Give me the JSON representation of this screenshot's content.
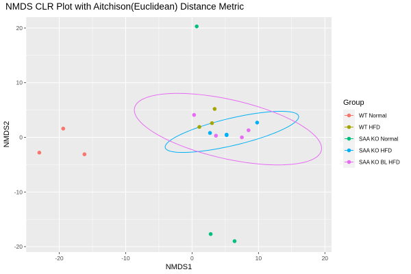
{
  "chart_data": {
    "type": "scatter",
    "title": "NMDS CLR Plot with Aitchison(Euclidean) Distance Metric",
    "xlabel": "NMDS1",
    "ylabel": "NMDS2",
    "xlim": [
      -25,
      21
    ],
    "ylim": [
      -21,
      22
    ],
    "x_ticks": [
      -20,
      -10,
      0,
      10,
      20
    ],
    "y_ticks": [
      -20,
      -10,
      0,
      10,
      20
    ],
    "grid": true,
    "legend": {
      "title": "Group",
      "position": "right"
    },
    "series": [
      {
        "name": "WT Normal",
        "color": "#F8766D",
        "points": [
          [
            -19.4,
            1.6
          ],
          [
            -23.0,
            -2.8
          ],
          [
            -16.2,
            -3.1
          ]
        ]
      },
      {
        "name": "WT HFD",
        "color": "#A3A500",
        "points": [
          [
            3.4,
            5.2
          ],
          [
            3.0,
            2.6
          ],
          [
            1.1,
            1.9
          ]
        ]
      },
      {
        "name": "SAA KO Normal",
        "color": "#00BF7D",
        "points": [
          [
            0.7,
            20.3
          ],
          [
            2.8,
            -17.7
          ],
          [
            6.4,
            -19.0
          ]
        ]
      },
      {
        "name": "SAA KO HFD",
        "color": "#00B0F6",
        "points": [
          [
            9.8,
            2.7
          ],
          [
            2.7,
            0.8
          ],
          [
            5.2,
            0.5
          ],
          [
            5.2,
            0.4
          ]
        ]
      },
      {
        "name": "SAA KO BL HFD",
        "color": "#E76BF3",
        "points": [
          [
            0.3,
            4.1
          ],
          [
            8.5,
            1.3
          ],
          [
            3.6,
            0.3
          ],
          [
            7.5,
            0.0
          ]
        ]
      }
    ],
    "ellipses": [
      {
        "series": "SAA KO HFD",
        "color": "#00B0F6",
        "center": [
          6.0,
          1.0
        ],
        "semi_major": 10.45,
        "semi_minor": 2.46,
        "angle_deg": 16.3
      },
      {
        "series": "SAA KO BL HFD",
        "color": "#E76BF3",
        "center": [
          5.4,
          1.5
        ],
        "semi_major": 14.6,
        "semi_minor": 5.34,
        "angle_deg": -16.2
      }
    ]
  }
}
